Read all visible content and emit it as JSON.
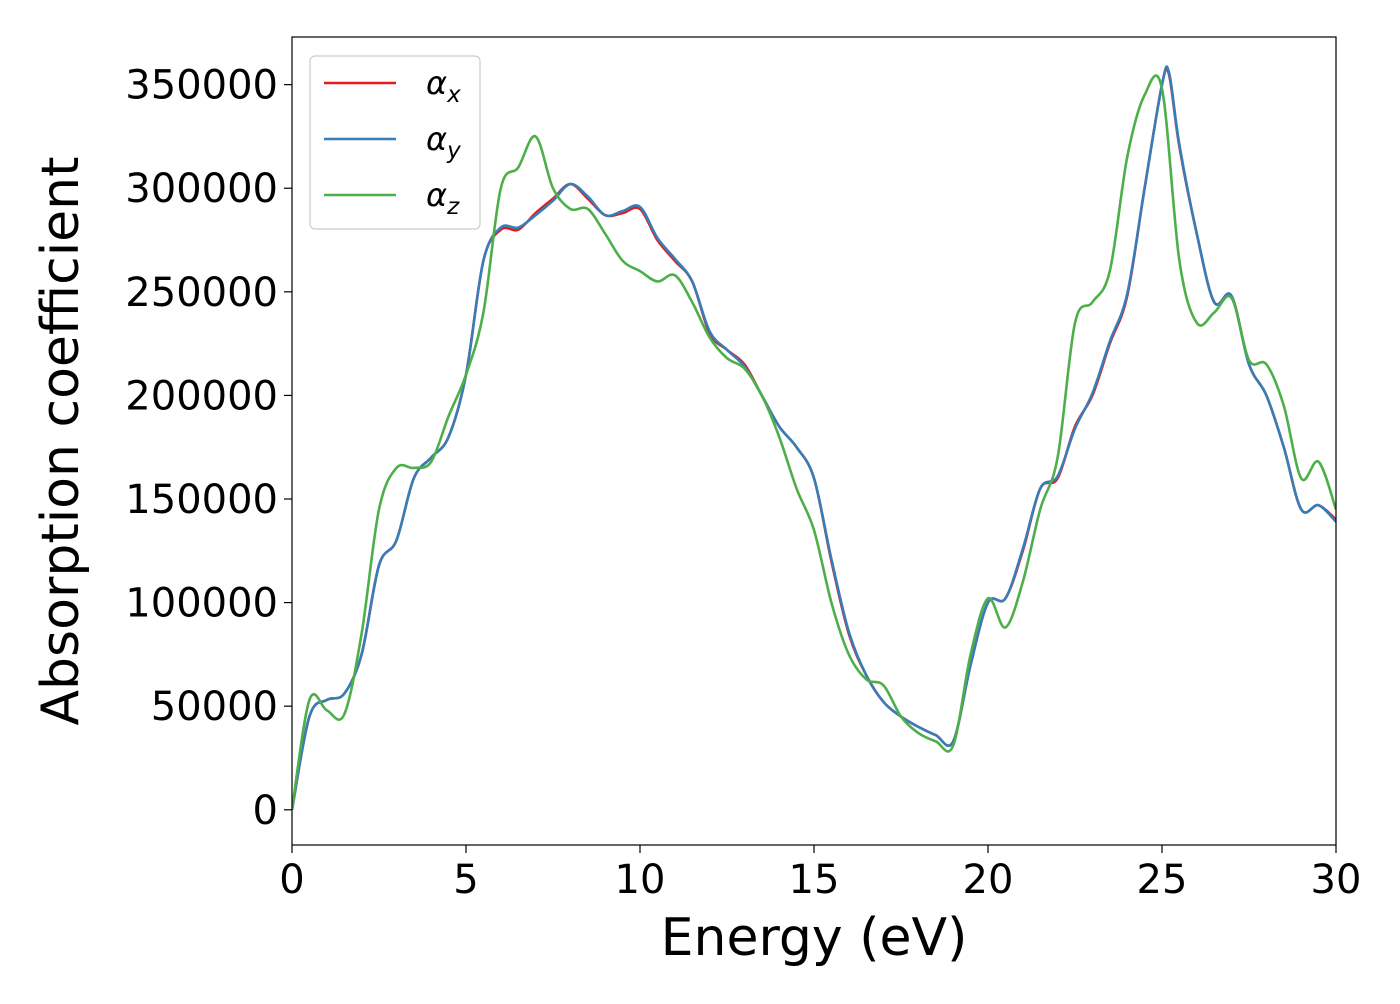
{
  "chart_data": {
    "type": "line",
    "title": "",
    "xlabel": "Energy (eV)",
    "ylabel": "Absorption coefficient",
    "xlim": [
      0,
      30
    ],
    "ylim": [
      -17000,
      373000
    ],
    "xticks": [
      0,
      5,
      10,
      15,
      20,
      25,
      30
    ],
    "xtick_labels": [
      "0",
      "5",
      "10",
      "15",
      "20",
      "25",
      "30"
    ],
    "yticks": [
      0,
      50000,
      100000,
      150000,
      200000,
      250000,
      300000,
      350000
    ],
    "ytick_labels": [
      "0",
      "50000",
      "100000",
      "150000",
      "200000",
      "250000",
      "300000",
      "350000"
    ],
    "grid": false,
    "legend_position": "top-left",
    "series": [
      {
        "name": "α",
        "subscript": "x",
        "color": "#e41a1c",
        "x": [
          0,
          0.5,
          1,
          1.5,
          2,
          2.5,
          3,
          3.5,
          4,
          4.5,
          5,
          5.5,
          6,
          6.5,
          7,
          7.5,
          8,
          8.5,
          9,
          9.5,
          10,
          10.5,
          11,
          11.5,
          12,
          12.5,
          13,
          13.5,
          14,
          14.5,
          15,
          15.5,
          16,
          16.5,
          17,
          17.5,
          18,
          18.5,
          19,
          19.5,
          20,
          20.5,
          21,
          21.5,
          22,
          22.5,
          23,
          23.5,
          24,
          24.5,
          25,
          25.2,
          25.5,
          26,
          26.5,
          27,
          27.5,
          28,
          28.5,
          29,
          29.5,
          30
        ],
        "y": [
          0,
          45000,
          53000,
          56000,
          75000,
          118000,
          130000,
          160000,
          170000,
          180000,
          210000,
          265000,
          280000,
          280000,
          288000,
          295000,
          302000,
          295000,
          287000,
          288000,
          290000,
          275000,
          265000,
          255000,
          230000,
          222000,
          215000,
          200000,
          185000,
          175000,
          160000,
          120000,
          85000,
          65000,
          52000,
          45000,
          40000,
          36000,
          33000,
          70000,
          100000,
          102000,
          125000,
          155000,
          160000,
          185000,
          200000,
          225000,
          248000,
          300000,
          350000,
          355000,
          320000,
          278000,
          245000,
          248000,
          215000,
          200000,
          175000,
          145000,
          147000,
          140000
        ]
      },
      {
        "name": "α",
        "subscript": "y",
        "color": "#377eb8",
        "x": [
          0,
          0.5,
          1,
          1.5,
          2,
          2.5,
          3,
          3.5,
          4,
          4.5,
          5,
          5.5,
          6,
          6.5,
          7,
          7.5,
          8,
          8.5,
          9,
          9.5,
          10,
          10.5,
          11,
          11.5,
          12,
          12.5,
          13,
          13.5,
          14,
          14.5,
          15,
          15.5,
          16,
          16.5,
          17,
          17.5,
          18,
          18.5,
          19,
          19.5,
          20,
          20.5,
          21,
          21.5,
          22,
          22.5,
          23,
          23.5,
          24,
          24.5,
          25,
          25.2,
          25.5,
          26,
          26.5,
          27,
          27.5,
          28,
          28.5,
          29,
          29.5,
          30
        ],
        "y": [
          0,
          45000,
          53000,
          56000,
          75000,
          118000,
          130000,
          160000,
          170000,
          180000,
          210000,
          265000,
          281000,
          281000,
          287000,
          294000,
          302000,
          296000,
          287000,
          289000,
          291000,
          276000,
          266000,
          255000,
          231000,
          222000,
          214000,
          200000,
          185000,
          175000,
          160000,
          121000,
          86000,
          65000,
          52000,
          45000,
          40000,
          36000,
          33000,
          70000,
          100000,
          102000,
          126000,
          155000,
          161000,
          184000,
          201000,
          226000,
          249000,
          300000,
          350000,
          356000,
          321000,
          278000,
          245000,
          248000,
          215000,
          200000,
          175000,
          145000,
          147000,
          139000
        ]
      },
      {
        "name": "α",
        "subscript": "z",
        "color": "#4daf4a",
        "x": [
          0,
          0.5,
          1,
          1.5,
          2,
          2.5,
          3,
          3.5,
          4,
          4.5,
          5,
          5.5,
          6,
          6.5,
          7,
          7.5,
          8,
          8.5,
          9,
          9.5,
          10,
          10.5,
          11,
          11.5,
          12,
          12.5,
          13,
          13.5,
          14,
          14.5,
          15,
          15.5,
          16,
          16.5,
          17,
          17.5,
          18,
          18.5,
          19,
          19.5,
          20,
          20.5,
          21,
          21.5,
          22,
          22.5,
          23,
          23.5,
          24,
          24.5,
          25,
          25.5,
          26,
          26.5,
          27,
          27.5,
          28,
          28.5,
          29,
          29.5,
          30
        ],
        "y": [
          0,
          53000,
          48000,
          46000,
          85000,
          145000,
          165000,
          165000,
          168000,
          190000,
          210000,
          240000,
          300000,
          310000,
          325000,
          300000,
          290000,
          290000,
          278000,
          265000,
          260000,
          255000,
          258000,
          245000,
          228000,
          218000,
          213000,
          200000,
          180000,
          155000,
          135000,
          100000,
          75000,
          63000,
          60000,
          45000,
          37000,
          33000,
          31000,
          75000,
          102000,
          88000,
          110000,
          145000,
          170000,
          235000,
          245000,
          260000,
          315000,
          345000,
          348000,
          265000,
          235000,
          240000,
          247000,
          217000,
          215000,
          195000,
          160000,
          168000,
          145000
        ]
      }
    ]
  }
}
